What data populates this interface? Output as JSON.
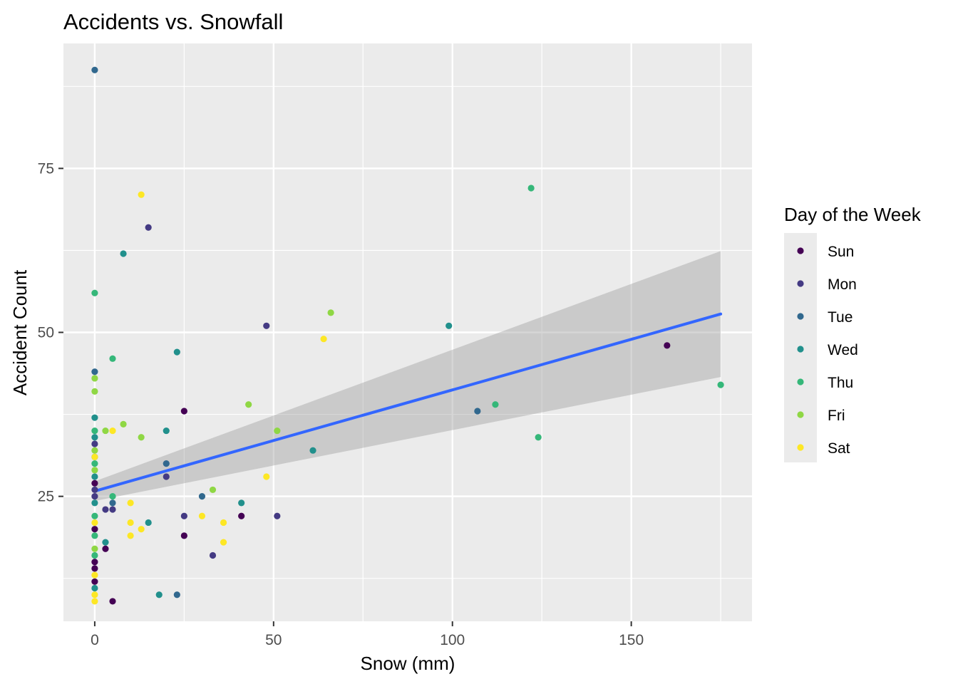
{
  "chart_data": {
    "type": "scatter",
    "title": "Accidents vs. Snowfall",
    "xlabel": "Snow (mm)",
    "ylabel": "Accident Count",
    "xlim": [
      -8.75,
      183.75
    ],
    "ylim": [
      5.95,
      94.05
    ],
    "x_ticks": [
      0,
      50,
      100,
      150
    ],
    "y_ticks": [
      25,
      50,
      75
    ],
    "grid": true,
    "legend": {
      "title": "Day of the Week",
      "position": "right",
      "entries": [
        {
          "label": "Sun",
          "color": "#440154"
        },
        {
          "label": "Mon",
          "color": "#443A83"
        },
        {
          "label": "Tue",
          "color": "#31688E"
        },
        {
          "label": "Wed",
          "color": "#21908C"
        },
        {
          "label": "Thu",
          "color": "#35B779"
        },
        {
          "label": "Fri",
          "color": "#8FD744"
        },
        {
          "label": "Sat",
          "color": "#FDE725"
        }
      ]
    },
    "series": [
      {
        "name": "Sun",
        "color": "#440154",
        "points": [
          [
            0,
            20
          ],
          [
            0,
            15
          ],
          [
            0,
            14
          ],
          [
            0,
            12
          ],
          [
            0,
            27
          ],
          [
            3,
            17
          ],
          [
            5,
            9
          ],
          [
            25,
            38
          ],
          [
            25,
            19
          ],
          [
            41,
            22
          ],
          [
            160,
            48
          ]
        ]
      },
      {
        "name": "Mon",
        "color": "#443A83",
        "points": [
          [
            0,
            26
          ],
          [
            0,
            25
          ],
          [
            0,
            33
          ],
          [
            3,
            23
          ],
          [
            5,
            23
          ],
          [
            15,
            66
          ],
          [
            20,
            28
          ],
          [
            25,
            22
          ],
          [
            33,
            16
          ],
          [
            48,
            51
          ],
          [
            51,
            22
          ]
        ]
      },
      {
        "name": "Tue",
        "color": "#31688E",
        "points": [
          [
            0,
            90
          ],
          [
            0,
            44
          ],
          [
            0,
            31
          ],
          [
            5,
            24
          ],
          [
            20,
            30
          ],
          [
            23,
            10
          ],
          [
            30,
            25
          ],
          [
            107,
            38
          ]
        ]
      },
      {
        "name": "Wed",
        "color": "#21908C",
        "points": [
          [
            0,
            37
          ],
          [
            0,
            34
          ],
          [
            0,
            28
          ],
          [
            0,
            24
          ],
          [
            0,
            11
          ],
          [
            3,
            18
          ],
          [
            8,
            62
          ],
          [
            15,
            21
          ],
          [
            18,
            10
          ],
          [
            20,
            35
          ],
          [
            23,
            47
          ],
          [
            41,
            24
          ],
          [
            61,
            32
          ],
          [
            99,
            51
          ]
        ]
      },
      {
        "name": "Thu",
        "color": "#35B779",
        "points": [
          [
            0,
            56
          ],
          [
            0,
            35
          ],
          [
            0,
            30
          ],
          [
            0,
            22
          ],
          [
            0,
            19
          ],
          [
            0,
            16
          ],
          [
            5,
            46
          ],
          [
            5,
            25
          ],
          [
            112,
            39
          ],
          [
            122,
            72
          ],
          [
            124,
            34
          ],
          [
            175,
            42
          ]
        ]
      },
      {
        "name": "Fri",
        "color": "#8FD744",
        "points": [
          [
            0,
            43
          ],
          [
            0,
            41
          ],
          [
            0,
            32
          ],
          [
            0,
            29
          ],
          [
            0,
            17
          ],
          [
            3,
            35
          ],
          [
            8,
            36
          ],
          [
            13,
            34
          ],
          [
            33,
            26
          ],
          [
            43,
            39
          ],
          [
            51,
            35
          ],
          [
            66,
            53
          ]
        ]
      },
      {
        "name": "Sat",
        "color": "#FDE725",
        "points": [
          [
            0,
            31
          ],
          [
            0,
            21
          ],
          [
            0,
            13
          ],
          [
            0,
            10
          ],
          [
            0,
            9
          ],
          [
            5,
            35
          ],
          [
            10,
            24
          ],
          [
            10,
            21
          ],
          [
            10,
            19
          ],
          [
            13,
            71
          ],
          [
            13,
            20
          ],
          [
            30,
            22
          ],
          [
            36,
            21
          ],
          [
            36,
            18
          ],
          [
            48,
            28
          ],
          [
            64,
            49
          ]
        ]
      }
    ],
    "trend_line": {
      "method": "linear",
      "color": "#3366FF",
      "x": [
        0,
        175
      ],
      "y": [
        25.8,
        52.8
      ],
      "ci_lower": [
        24.3,
        43.2
      ],
      "ci_upper": [
        27.3,
        62.4
      ]
    }
  }
}
